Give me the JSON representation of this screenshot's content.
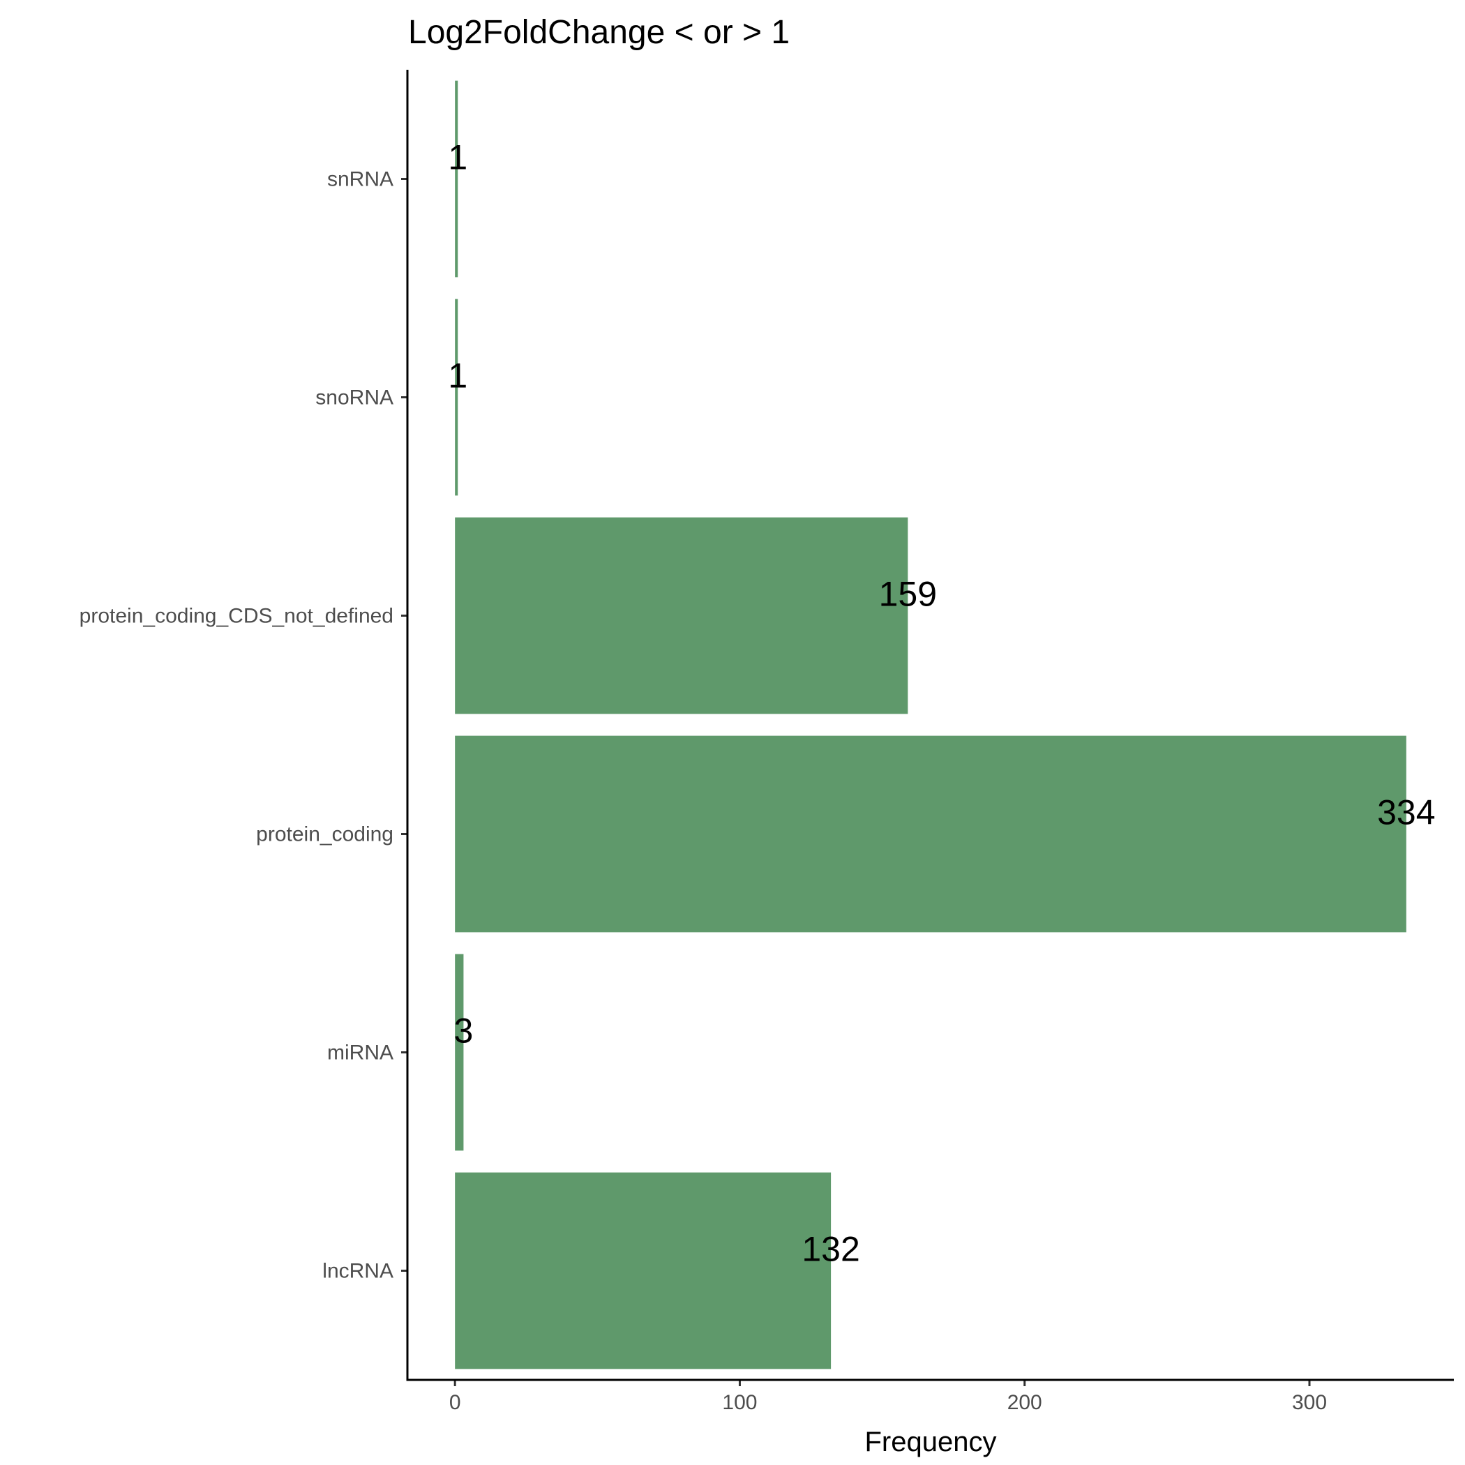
{
  "chart_data": {
    "type": "bar",
    "orientation": "horizontal",
    "title": "Log2FoldChange < or > 1",
    "xlabel": "Frequency",
    "ylabel": "",
    "categories": [
      "lncRNA",
      "miRNA",
      "protein_coding",
      "protein_coding_CDS_not_defined",
      "snoRNA",
      "snRNA"
    ],
    "values": [
      132,
      3,
      334,
      159,
      1,
      1
    ],
    "data_labels": [
      "132",
      "3",
      "334",
      "159",
      "1",
      "1"
    ],
    "xlim": [
      -16.7,
      350.7
    ],
    "xticks": [
      0,
      100,
      200,
      300
    ],
    "xtick_labels": [
      "0",
      "100",
      "200",
      "300"
    ],
    "bar_color": "#5f996b",
    "grid": false,
    "legend": "none"
  }
}
